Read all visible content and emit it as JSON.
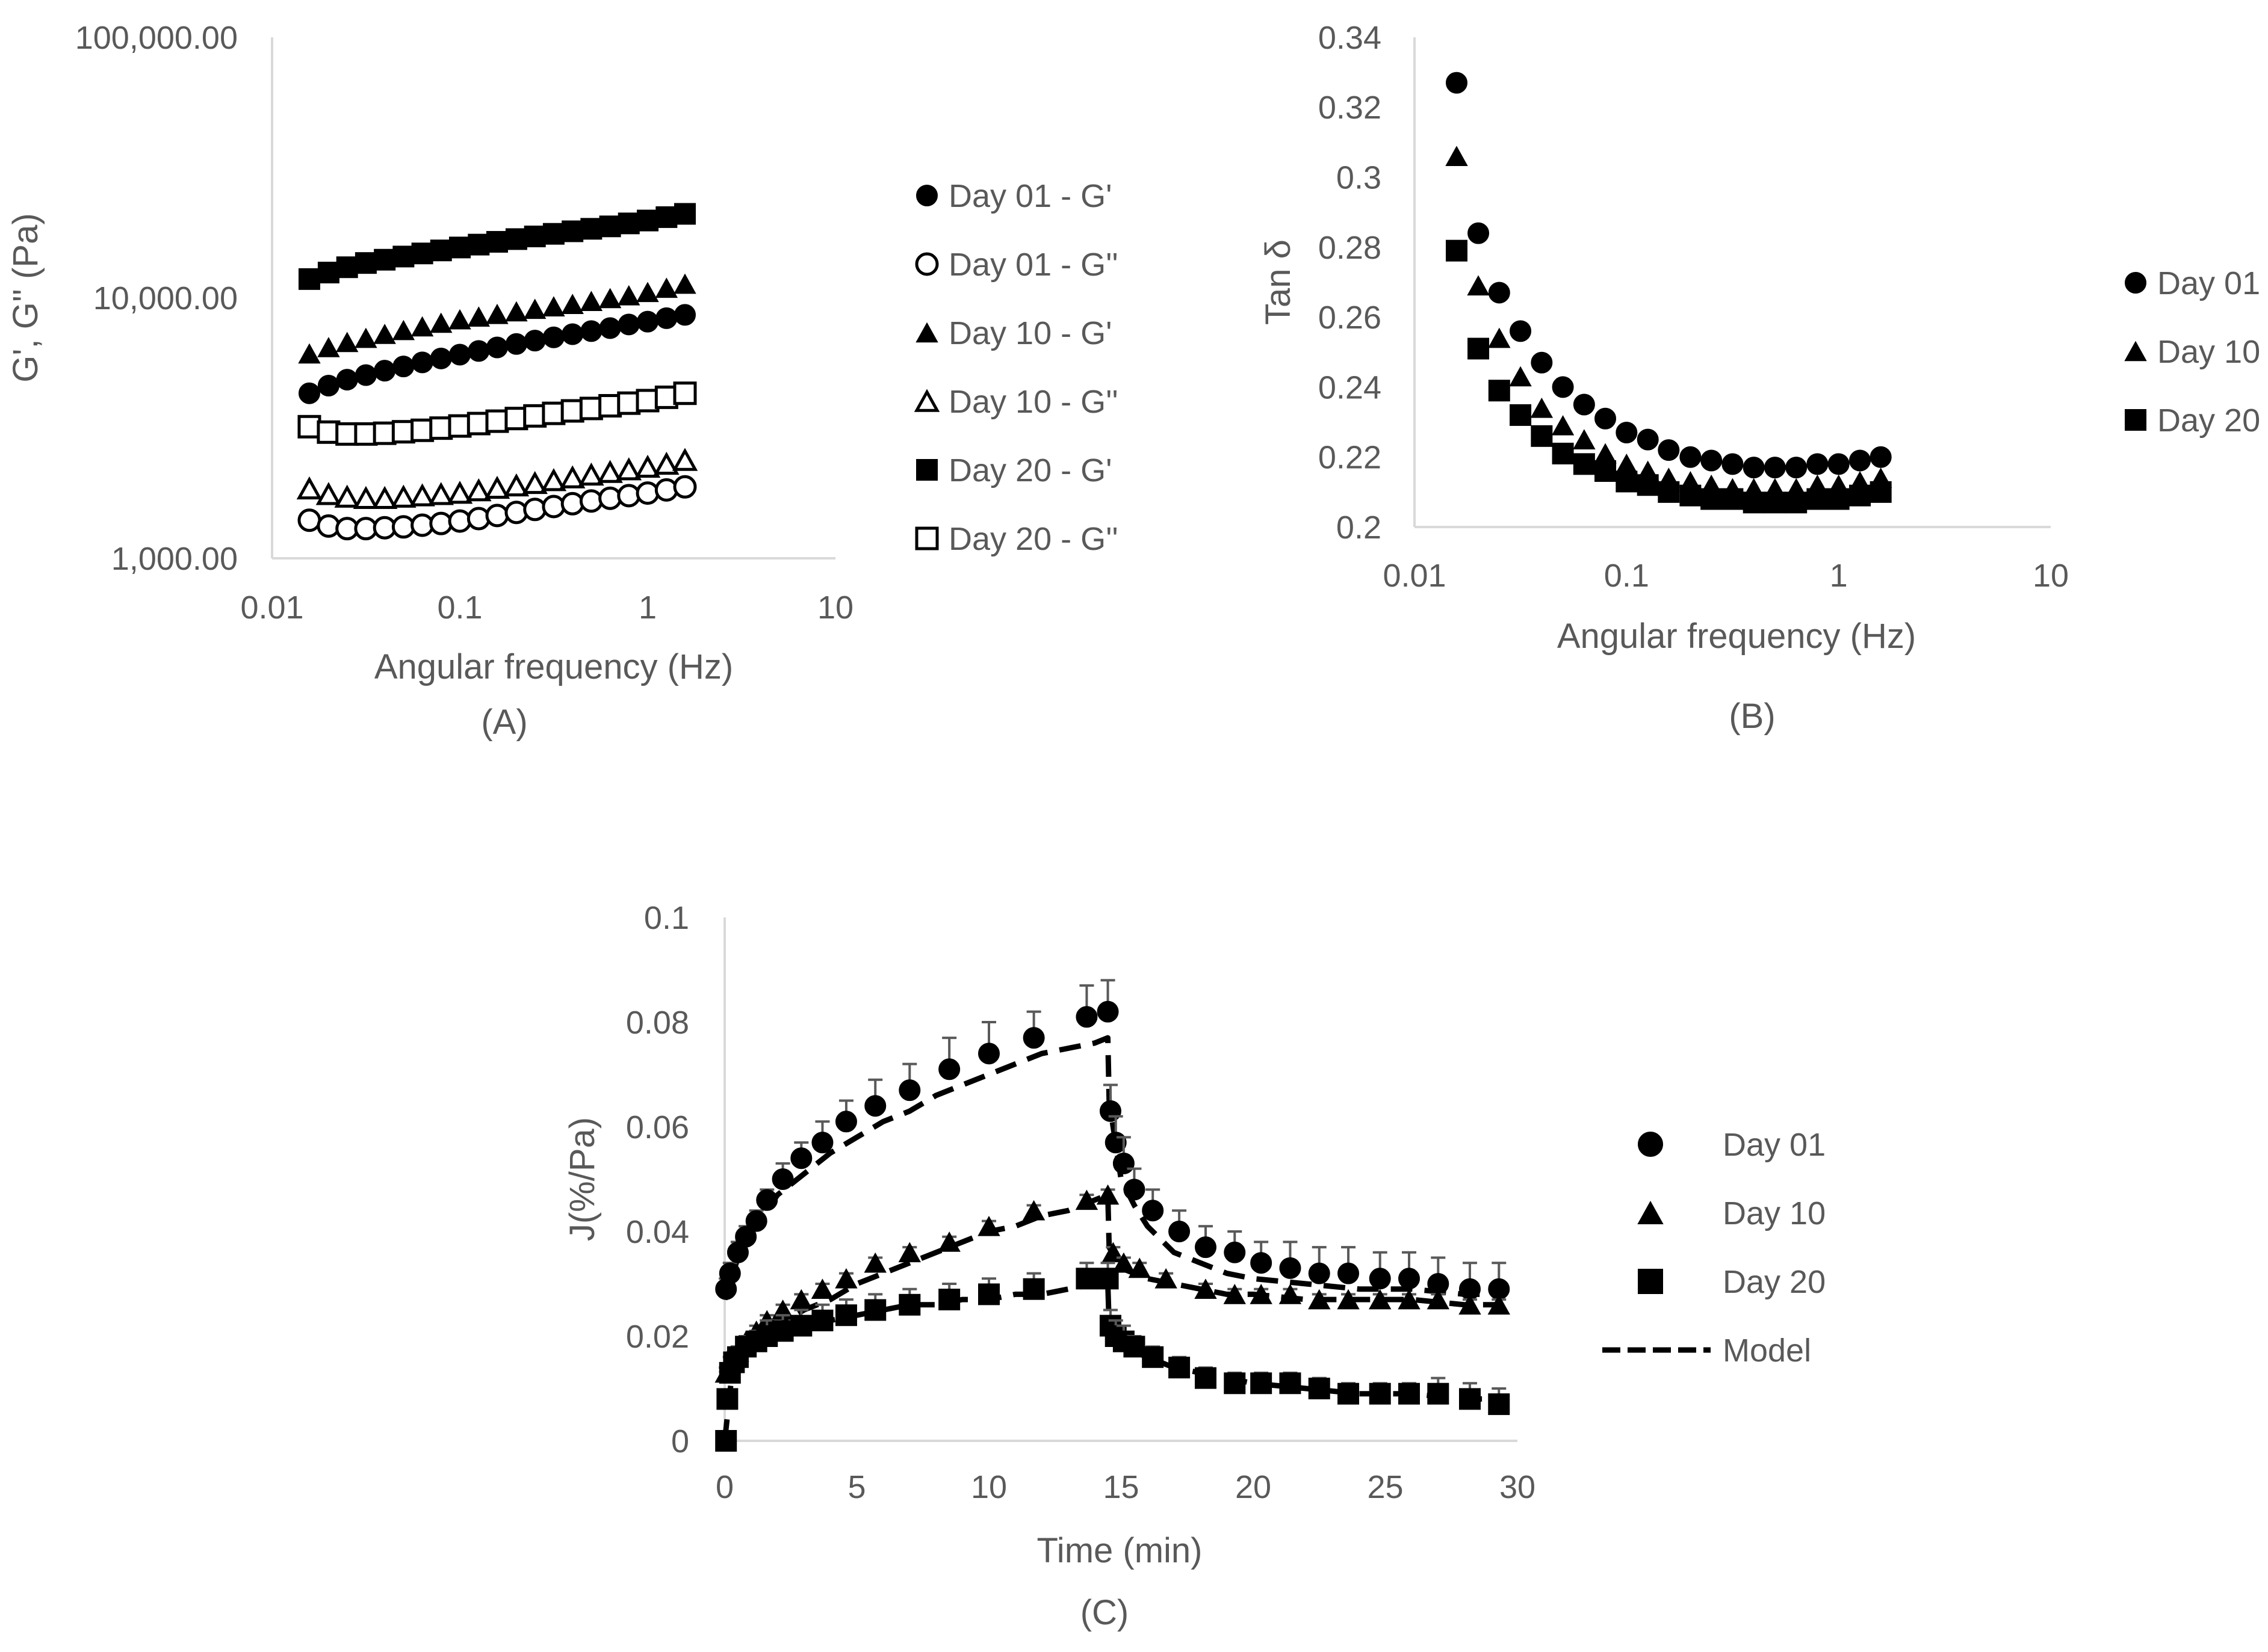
{
  "colors": {
    "axis": "#d9d9d9",
    "text": "#595959",
    "marker": "#000000",
    "model": "#000000",
    "error_bar": "#595959"
  },
  "chart_data": [
    {
      "id": "A",
      "type": "scatter",
      "panel_label": "(A)",
      "xlabel": "Angular frequency (Hz)",
      "ylabel": "G', G'' (Pa)",
      "xscale": "log",
      "yscale": "log",
      "xlim": [
        0.01,
        10
      ],
      "ylim": [
        1000,
        100000
      ],
      "xticks": [
        0.01,
        0.1,
        1,
        10
      ],
      "xtick_labels": [
        "0.01",
        "0.1",
        "1",
        "10"
      ],
      "yticks": [
        1000,
        10000,
        100000
      ],
      "ytick_labels": [
        "1,000.00",
        "10,000.00",
        "100,000.00"
      ],
      "legend_position": "right",
      "x": [
        0.0158,
        0.02,
        0.0251,
        0.0316,
        0.0398,
        0.0501,
        0.0631,
        0.0794,
        0.1,
        0.126,
        0.158,
        0.2,
        0.251,
        0.316,
        0.398,
        0.501,
        0.631,
        0.794,
        1.0,
        1.26,
        1.58
      ],
      "series": [
        {
          "name": "Day 01 - G'",
          "marker": "circle",
          "fill": "filled",
          "values": [
            4300,
            4600,
            4850,
            5050,
            5250,
            5450,
            5650,
            5850,
            6050,
            6250,
            6450,
            6650,
            6850,
            7050,
            7250,
            7450,
            7650,
            7900,
            8100,
            8350,
            8600
          ]
        },
        {
          "name": "Day 01 - G''",
          "marker": "circle",
          "fill": "open",
          "values": [
            1400,
            1330,
            1300,
            1300,
            1310,
            1320,
            1340,
            1360,
            1390,
            1420,
            1460,
            1500,
            1540,
            1580,
            1620,
            1660,
            1700,
            1740,
            1780,
            1830,
            1880
          ]
        },
        {
          "name": "Day 10 - G'",
          "marker": "triangle",
          "fill": "filled",
          "values": [
            6100,
            6450,
            6750,
            7000,
            7250,
            7500,
            7750,
            8000,
            8250,
            8450,
            8650,
            8850,
            9050,
            9250,
            9450,
            9700,
            9950,
            10200,
            10500,
            10900,
            11300
          ]
        },
        {
          "name": "Day 10 - G''",
          "marker": "triangle",
          "fill": "open",
          "values": [
            1850,
            1760,
            1720,
            1700,
            1700,
            1720,
            1740,
            1760,
            1780,
            1820,
            1860,
            1900,
            1940,
            1990,
            2040,
            2090,
            2140,
            2190,
            2240,
            2300,
            2380
          ]
        },
        {
          "name": "Day 20 - G'",
          "marker": "square",
          "fill": "filled",
          "values": [
            11800,
            12500,
            13100,
            13600,
            14000,
            14400,
            14800,
            15200,
            15600,
            16000,
            16400,
            16800,
            17200,
            17600,
            18000,
            18400,
            18800,
            19300,
            19800,
            20400,
            21000
          ]
        },
        {
          "name": "Day 20 - G''",
          "marker": "square",
          "fill": "open",
          "values": [
            3200,
            3050,
            3000,
            3000,
            3020,
            3060,
            3100,
            3160,
            3220,
            3290,
            3360,
            3440,
            3520,
            3600,
            3680,
            3760,
            3850,
            3940,
            4030,
            4150,
            4300
          ]
        }
      ]
    },
    {
      "id": "B",
      "type": "scatter",
      "panel_label": "(B)",
      "xlabel": "Angular frequency (Hz)",
      "ylabel": "Tan δ",
      "xscale": "log",
      "yscale": "linear",
      "xlim": [
        0.01,
        10
      ],
      "ylim": [
        0.2,
        0.34
      ],
      "xticks": [
        0.01,
        0.1,
        1,
        10
      ],
      "xtick_labels": [
        "0.01",
        "0.1",
        "1",
        "10"
      ],
      "yticks": [
        0.2,
        0.22,
        0.24,
        0.26,
        0.28,
        0.3,
        0.32,
        0.34
      ],
      "ytick_labels": [
        "0.2",
        "0.22",
        "0.24",
        "0.26",
        "0.28",
        "0.3",
        "0.32",
        "0.34"
      ],
      "legend_position": "right",
      "x": [
        0.0158,
        0.02,
        0.0251,
        0.0316,
        0.0398,
        0.0501,
        0.0631,
        0.0794,
        0.1,
        0.126,
        0.158,
        0.2,
        0.251,
        0.316,
        0.398,
        0.501,
        0.631,
        0.794,
        1.0,
        1.26,
        1.58
      ],
      "series": [
        {
          "name": "Day 01",
          "marker": "circle",
          "fill": "filled",
          "values": [
            0.327,
            0.284,
            0.267,
            0.256,
            0.247,
            0.24,
            0.235,
            0.231,
            0.227,
            0.225,
            0.222,
            0.22,
            0.219,
            0.218,
            0.217,
            0.217,
            0.217,
            0.218,
            0.218,
            0.219,
            0.22
          ]
        },
        {
          "name": "Day 10",
          "marker": "triangle",
          "fill": "filled",
          "values": [
            0.306,
            0.269,
            0.254,
            0.243,
            0.234,
            0.229,
            0.225,
            0.221,
            0.218,
            0.216,
            0.214,
            0.213,
            0.212,
            0.211,
            0.211,
            0.211,
            0.211,
            0.212,
            0.212,
            0.213,
            0.214
          ]
        },
        {
          "name": "Day 20",
          "marker": "square",
          "fill": "filled",
          "values": [
            0.279,
            0.251,
            0.239,
            0.232,
            0.226,
            0.221,
            0.218,
            0.216,
            0.213,
            0.212,
            0.21,
            0.209,
            0.208,
            0.208,
            0.207,
            0.207,
            0.207,
            0.208,
            0.208,
            0.209,
            0.21
          ]
        }
      ]
    },
    {
      "id": "C",
      "type": "scatter",
      "panel_label": "(C)",
      "xlabel": "Time (min)",
      "ylabel": "J(%/Pa)",
      "xscale": "linear",
      "yscale": "linear",
      "xlim": [
        0,
        30
      ],
      "ylim": [
        0,
        0.1
      ],
      "xticks": [
        0,
        5,
        10,
        15,
        20,
        25,
        30
      ],
      "xtick_labels": [
        "0",
        "5",
        "10",
        "15",
        "20",
        "25",
        "30"
      ],
      "yticks": [
        0,
        0.02,
        0.04,
        0.06,
        0.08,
        0.1
      ],
      "ytick_labels": [
        "0",
        "0.02",
        "0.04",
        "0.06",
        "0.08",
        "0.1"
      ],
      "legend_position": "right",
      "series": [
        {
          "name": "Day 01",
          "marker": "circle",
          "fill": "filled",
          "x": [
            0.05,
            0.2,
            0.5,
            0.8,
            1.2,
            1.6,
            2.2,
            2.9,
            3.7,
            4.6,
            5.7,
            7.0,
            8.5,
            10.0,
            11.7,
            13.7,
            14.5,
            14.6,
            14.8,
            15.1,
            15.5,
            16.2,
            17.2,
            18.2,
            19.3,
            20.3,
            21.4,
            22.5,
            23.6,
            24.8,
            25.9,
            27.0,
            28.2,
            29.3
          ],
          "values": [
            0.029,
            0.032,
            0.036,
            0.039,
            0.042,
            0.046,
            0.05,
            0.054,
            0.057,
            0.061,
            0.064,
            0.067,
            0.071,
            0.074,
            0.077,
            0.081,
            0.082,
            0.063,
            0.057,
            0.053,
            0.048,
            0.044,
            0.04,
            0.037,
            0.036,
            0.034,
            0.033,
            0.032,
            0.032,
            0.031,
            0.031,
            0.03,
            0.029,
            0.029
          ],
          "error": [
            0.002,
            0.002,
            0.002,
            0.002,
            0.002,
            0.002,
            0.003,
            0.003,
            0.004,
            0.004,
            0.005,
            0.005,
            0.006,
            0.006,
            0.005,
            0.006,
            0.006,
            0.005,
            0.005,
            0.005,
            0.004,
            0.004,
            0.004,
            0.004,
            0.004,
            0.004,
            0.005,
            0.005,
            0.005,
            0.005,
            0.005,
            0.005,
            0.005,
            0.005
          ]
        },
        {
          "name": "Day 10",
          "marker": "triangle",
          "fill": "filled",
          "x": [
            0.05,
            0.2,
            0.5,
            0.8,
            1.2,
            1.6,
            2.2,
            2.9,
            3.7,
            4.6,
            5.7,
            7.0,
            8.5,
            10.0,
            11.7,
            13.7,
            14.5,
            14.7,
            15.1,
            15.7,
            16.7,
            18.2,
            19.3,
            20.3,
            21.4,
            22.5,
            23.6,
            24.8,
            25.9,
            27.0,
            28.2,
            29.3
          ],
          "values": [
            0.013,
            0.015,
            0.017,
            0.019,
            0.021,
            0.023,
            0.025,
            0.027,
            0.029,
            0.031,
            0.034,
            0.036,
            0.038,
            0.041,
            0.044,
            0.046,
            0.047,
            0.036,
            0.034,
            0.033,
            0.031,
            0.029,
            0.028,
            0.028,
            0.028,
            0.027,
            0.027,
            0.027,
            0.027,
            0.027,
            0.026,
            0.026
          ],
          "error": [
            0.001,
            0.001,
            0.001,
            0.001,
            0.001,
            0.001,
            0.001,
            0.001,
            0.001,
            0.001,
            0.001,
            0.001,
            0.001,
            0.001,
            0.001,
            0.001,
            0.001,
            0.001,
            0.001,
            0.001,
            0.001,
            0.001,
            0.001,
            0.001,
            0.001,
            0.001,
            0.001,
            0.001,
            0.001,
            0.001,
            0.001,
            0.001
          ]
        },
        {
          "name": "Day 20",
          "marker": "square",
          "fill": "filled",
          "x": [
            0.05,
            0.1,
            0.2,
            0.35,
            0.5,
            0.8,
            1.2,
            1.6,
            2.2,
            2.9,
            3.7,
            4.6,
            5.7,
            7.0,
            8.5,
            10.0,
            11.7,
            13.7,
            14.5,
            14.6,
            14.8,
            15.1,
            15.5,
            16.2,
            17.2,
            18.2,
            19.3,
            20.3,
            21.4,
            22.5,
            23.6,
            24.8,
            25.9,
            27.0,
            28.2,
            29.3
          ],
          "values": [
            0.0,
            0.008,
            0.013,
            0.015,
            0.016,
            0.018,
            0.019,
            0.02,
            0.021,
            0.022,
            0.023,
            0.024,
            0.025,
            0.026,
            0.027,
            0.028,
            0.029,
            0.031,
            0.031,
            0.022,
            0.02,
            0.019,
            0.018,
            0.016,
            0.014,
            0.012,
            0.011,
            0.011,
            0.011,
            0.01,
            0.009,
            0.009,
            0.009,
            0.009,
            0.008,
            0.007
          ],
          "error": [
            0.001,
            0.001,
            0.001,
            0.002,
            0.002,
            0.002,
            0.002,
            0.003,
            0.003,
            0.003,
            0.003,
            0.003,
            0.003,
            0.003,
            0.003,
            0.003,
            0.003,
            0.003,
            0.003,
            0.003,
            0.003,
            0.003,
            0.002,
            0.002,
            0.002,
            0.002,
            0.002,
            0.002,
            0.002,
            0.002,
            0.002,
            0.002,
            0.002,
            0.003,
            0.003,
            0.003
          ]
        },
        {
          "name": "Model",
          "marker": "dashed-line",
          "curves": [
            {
              "x": [
                0,
                0.5,
                1,
                2,
                3,
                4,
                5,
                6,
                7,
                8,
                9,
                10,
                11,
                12,
                13,
                14,
                14.5,
                14.55,
                15,
                15.5,
                16,
                17,
                18,
                19,
                20,
                22,
                24,
                26,
                28,
                29.3
              ],
              "values": [
                0.027,
                0.035,
                0.04,
                0.047,
                0.051,
                0.055,
                0.058,
                0.061,
                0.063,
                0.066,
                0.068,
                0.07,
                0.072,
                0.074,
                0.075,
                0.076,
                0.077,
                0.065,
                0.05,
                0.045,
                0.041,
                0.036,
                0.034,
                0.032,
                0.031,
                0.03,
                0.029,
                0.029,
                0.028,
                0.028
              ]
            },
            {
              "x": [
                0,
                0.5,
                1,
                2,
                3,
                4,
                5,
                6,
                7,
                8,
                9,
                10,
                11,
                12,
                13,
                14,
                14.5,
                14.55,
                15,
                15.5,
                16,
                17,
                18,
                19,
                20,
                22,
                24,
                26,
                28,
                29.3
              ],
              "values": [
                0.012,
                0.017,
                0.019,
                0.022,
                0.025,
                0.027,
                0.03,
                0.032,
                0.034,
                0.036,
                0.038,
                0.04,
                0.041,
                0.043,
                0.044,
                0.046,
                0.047,
                0.037,
                0.033,
                0.032,
                0.031,
                0.03,
                0.029,
                0.028,
                0.028,
                0.027,
                0.027,
                0.027,
                0.026,
                0.026
              ]
            },
            {
              "x": [
                0,
                0.3,
                0.6,
                1,
                2,
                3,
                4,
                5,
                6,
                7,
                8,
                9,
                10,
                11,
                12,
                13,
                14,
                14.5,
                14.55,
                15,
                15.5,
                16,
                17,
                18,
                19,
                20,
                22,
                24,
                26,
                28,
                29.3
              ],
              "values": [
                0.0,
                0.014,
                0.016,
                0.018,
                0.02,
                0.022,
                0.023,
                0.024,
                0.025,
                0.026,
                0.026,
                0.027,
                0.027,
                0.028,
                0.028,
                0.029,
                0.03,
                0.03,
                0.022,
                0.019,
                0.017,
                0.016,
                0.014,
                0.013,
                0.012,
                0.011,
                0.01,
                0.009,
                0.009,
                0.008,
                0.008
              ]
            }
          ]
        }
      ]
    }
  ]
}
